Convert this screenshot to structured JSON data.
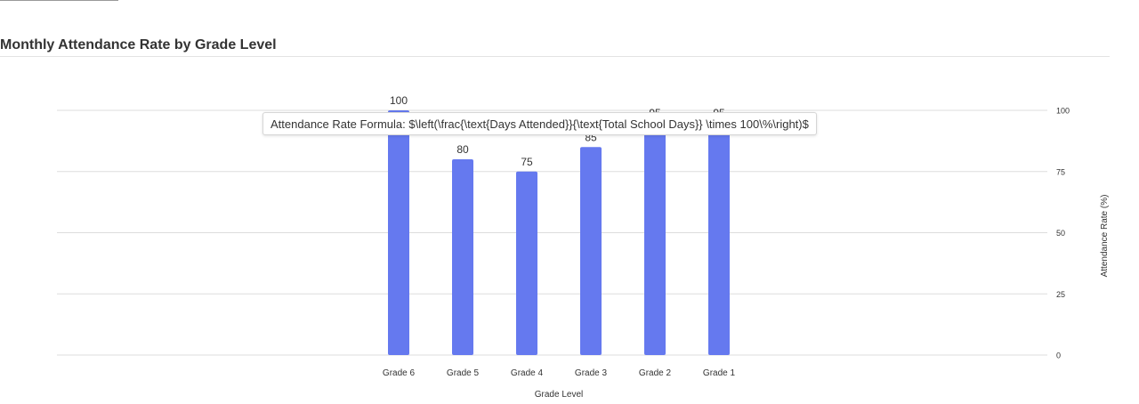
{
  "section": {
    "title": "Monthly Attendance Rate by Grade Level"
  },
  "tooltip": {
    "text": "Attendance Rate Formula: $\\left(\\frac{\\text{Days Attended}}{\\text{Total School Days}} \\times 100\\%\\right)$"
  },
  "colors": {
    "bar": "#6579EF",
    "grid": "#dddddd",
    "text": "#333333"
  },
  "chart_data": {
    "type": "bar",
    "categories": [
      "Grade 6",
      "Grade 5",
      "Grade 4",
      "Grade 3",
      "Grade 2",
      "Grade 1"
    ],
    "values": [
      100,
      80,
      75,
      85,
      95,
      95
    ],
    "title": "",
    "xlabel": "Grade Level",
    "ylabel": "Attendance Rate (%)",
    "ylim": [
      0,
      100
    ],
    "yticks": [
      0,
      25,
      50,
      75,
      100
    ],
    "y_axis_side": "right",
    "grid": true,
    "data_labels": true
  }
}
